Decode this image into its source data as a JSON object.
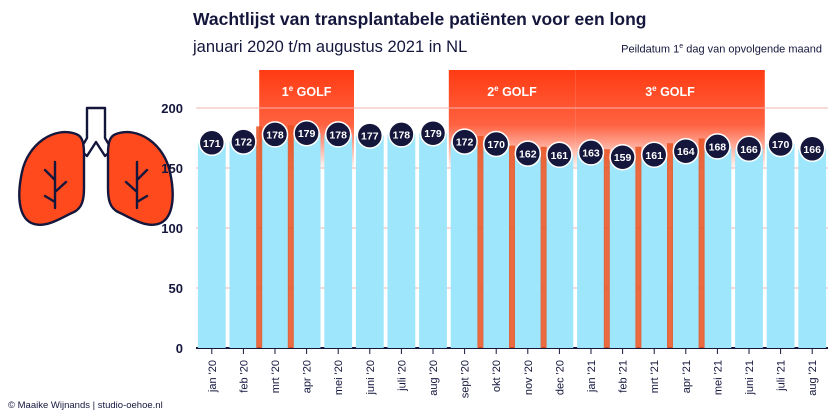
{
  "header": {
    "title": "Wachtlijst van transplantabele patiënten voor een long",
    "subtitle": "januari 2020 t/m augustus 2021 in NL",
    "reference_date": "Peildatum 1e dag van opvolgende maand"
  },
  "footer": {
    "credit": "© Maaike Wijnands | studio-oehoe.nl"
  },
  "illustration": {
    "icon": "lungs-icon"
  },
  "colors": {
    "bar": "#9ee6fb",
    "bubble": "#14163c",
    "bubble_text": "#ffffff",
    "wave": "#ff3b12",
    "wave_stripe": "#e8501f",
    "grid": "#f6b3ac",
    "axis_text": "#14163c"
  },
  "chart_data": {
    "type": "bar",
    "title": "Wachtlijst van transplantabele patiënten voor een long",
    "subtitle": "januari 2020 t/m augustus 2021 in NL",
    "categories": [
      "jan '20",
      "feb '20",
      "mrt '20",
      "apr '20",
      "mei '20",
      "juni '20",
      "juli '20",
      "aug '20",
      "sept '20",
      "okt '20",
      "nov '20",
      "dec '20",
      "jan '21",
      "feb '21",
      "mrt '21",
      "apr '21",
      "mei '21",
      "juni '21",
      "juli '21",
      "aug '21"
    ],
    "values": [
      171,
      172,
      178,
      179,
      178,
      177,
      178,
      179,
      172,
      170,
      162,
      161,
      163,
      159,
      161,
      164,
      168,
      166,
      170,
      166
    ],
    "ylim": [
      0,
      200
    ],
    "yticks": [
      0,
      50,
      100,
      150,
      200
    ],
    "grid": true,
    "data_labels": true,
    "highlighted_periods": [
      {
        "label": "1e GOLF",
        "from": "mrt '20",
        "to": "mei '20",
        "stripes": [
          "mrt '20",
          "apr '20"
        ]
      },
      {
        "label": "2e GOLF",
        "from": "sept '20",
        "to": "dec '20",
        "stripes": [
          "okt '20",
          "nov '20",
          "dec '20"
        ]
      },
      {
        "label": "3e GOLF",
        "from": "jan '21",
        "to": "juni '21",
        "stripes": [
          "feb '21",
          "mrt '21",
          "apr '21",
          "mei '21"
        ]
      }
    ]
  }
}
